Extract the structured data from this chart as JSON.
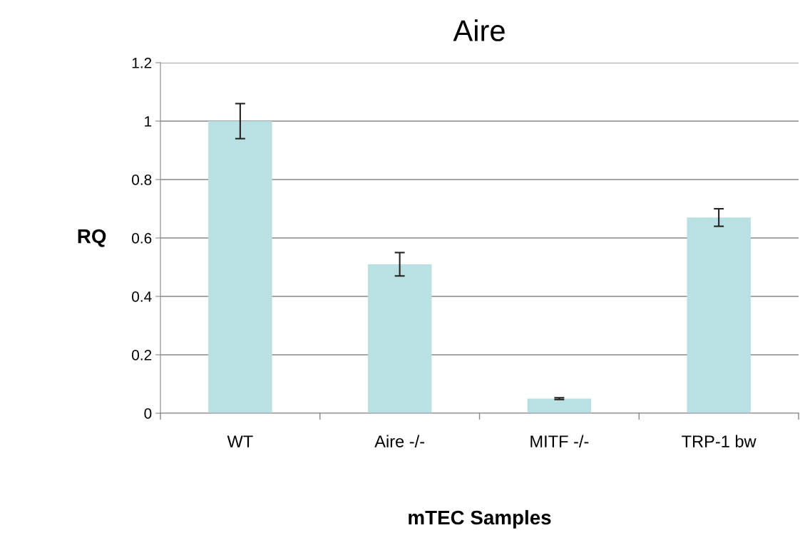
{
  "chart_data": {
    "type": "bar",
    "title": "Aire",
    "xlabel": "mTEC Samples",
    "ylabel": "RQ",
    "categories": [
      "WT",
      "Aire -/-",
      "MITF -/-",
      "TRP-1 bw"
    ],
    "values": [
      1.0,
      0.51,
      0.05,
      0.67
    ],
    "errors": [
      0.06,
      0.04,
      0.003,
      0.03
    ],
    "color": "#b9e0e2",
    "ylim": [
      0,
      1.2
    ],
    "yticks": [
      0,
      0.2,
      0.4,
      0.6,
      0.8,
      1,
      1.2
    ],
    "grid": "y"
  }
}
